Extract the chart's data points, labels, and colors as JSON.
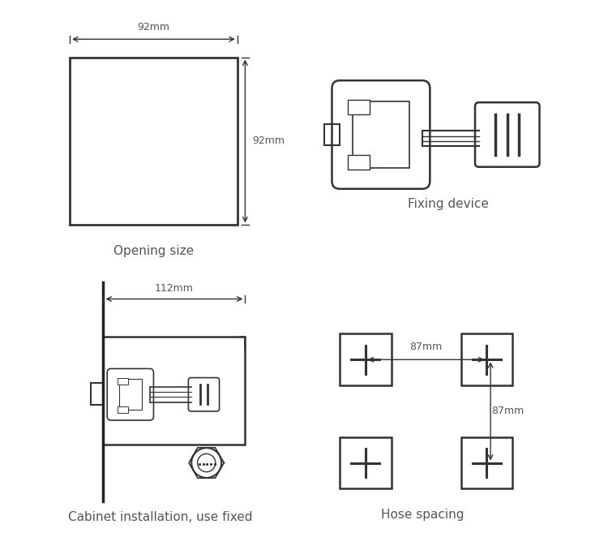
{
  "bg_color": "#ffffff",
  "line_color": "#333333",
  "text_color": "#555555",
  "labels": {
    "opening_size": "Opening size",
    "fixing_device": "Fixing device",
    "cabinet_install": "Cabinet installation, use fixed",
    "hose_spacing": "Hose spacing",
    "dim_92h": "92mm",
    "dim_92v": "92mm",
    "dim_112": "112mm",
    "dim_87h": "87mm",
    "dim_87v": "87mm"
  },
  "font_size_label": 11,
  "font_size_dim": 9
}
